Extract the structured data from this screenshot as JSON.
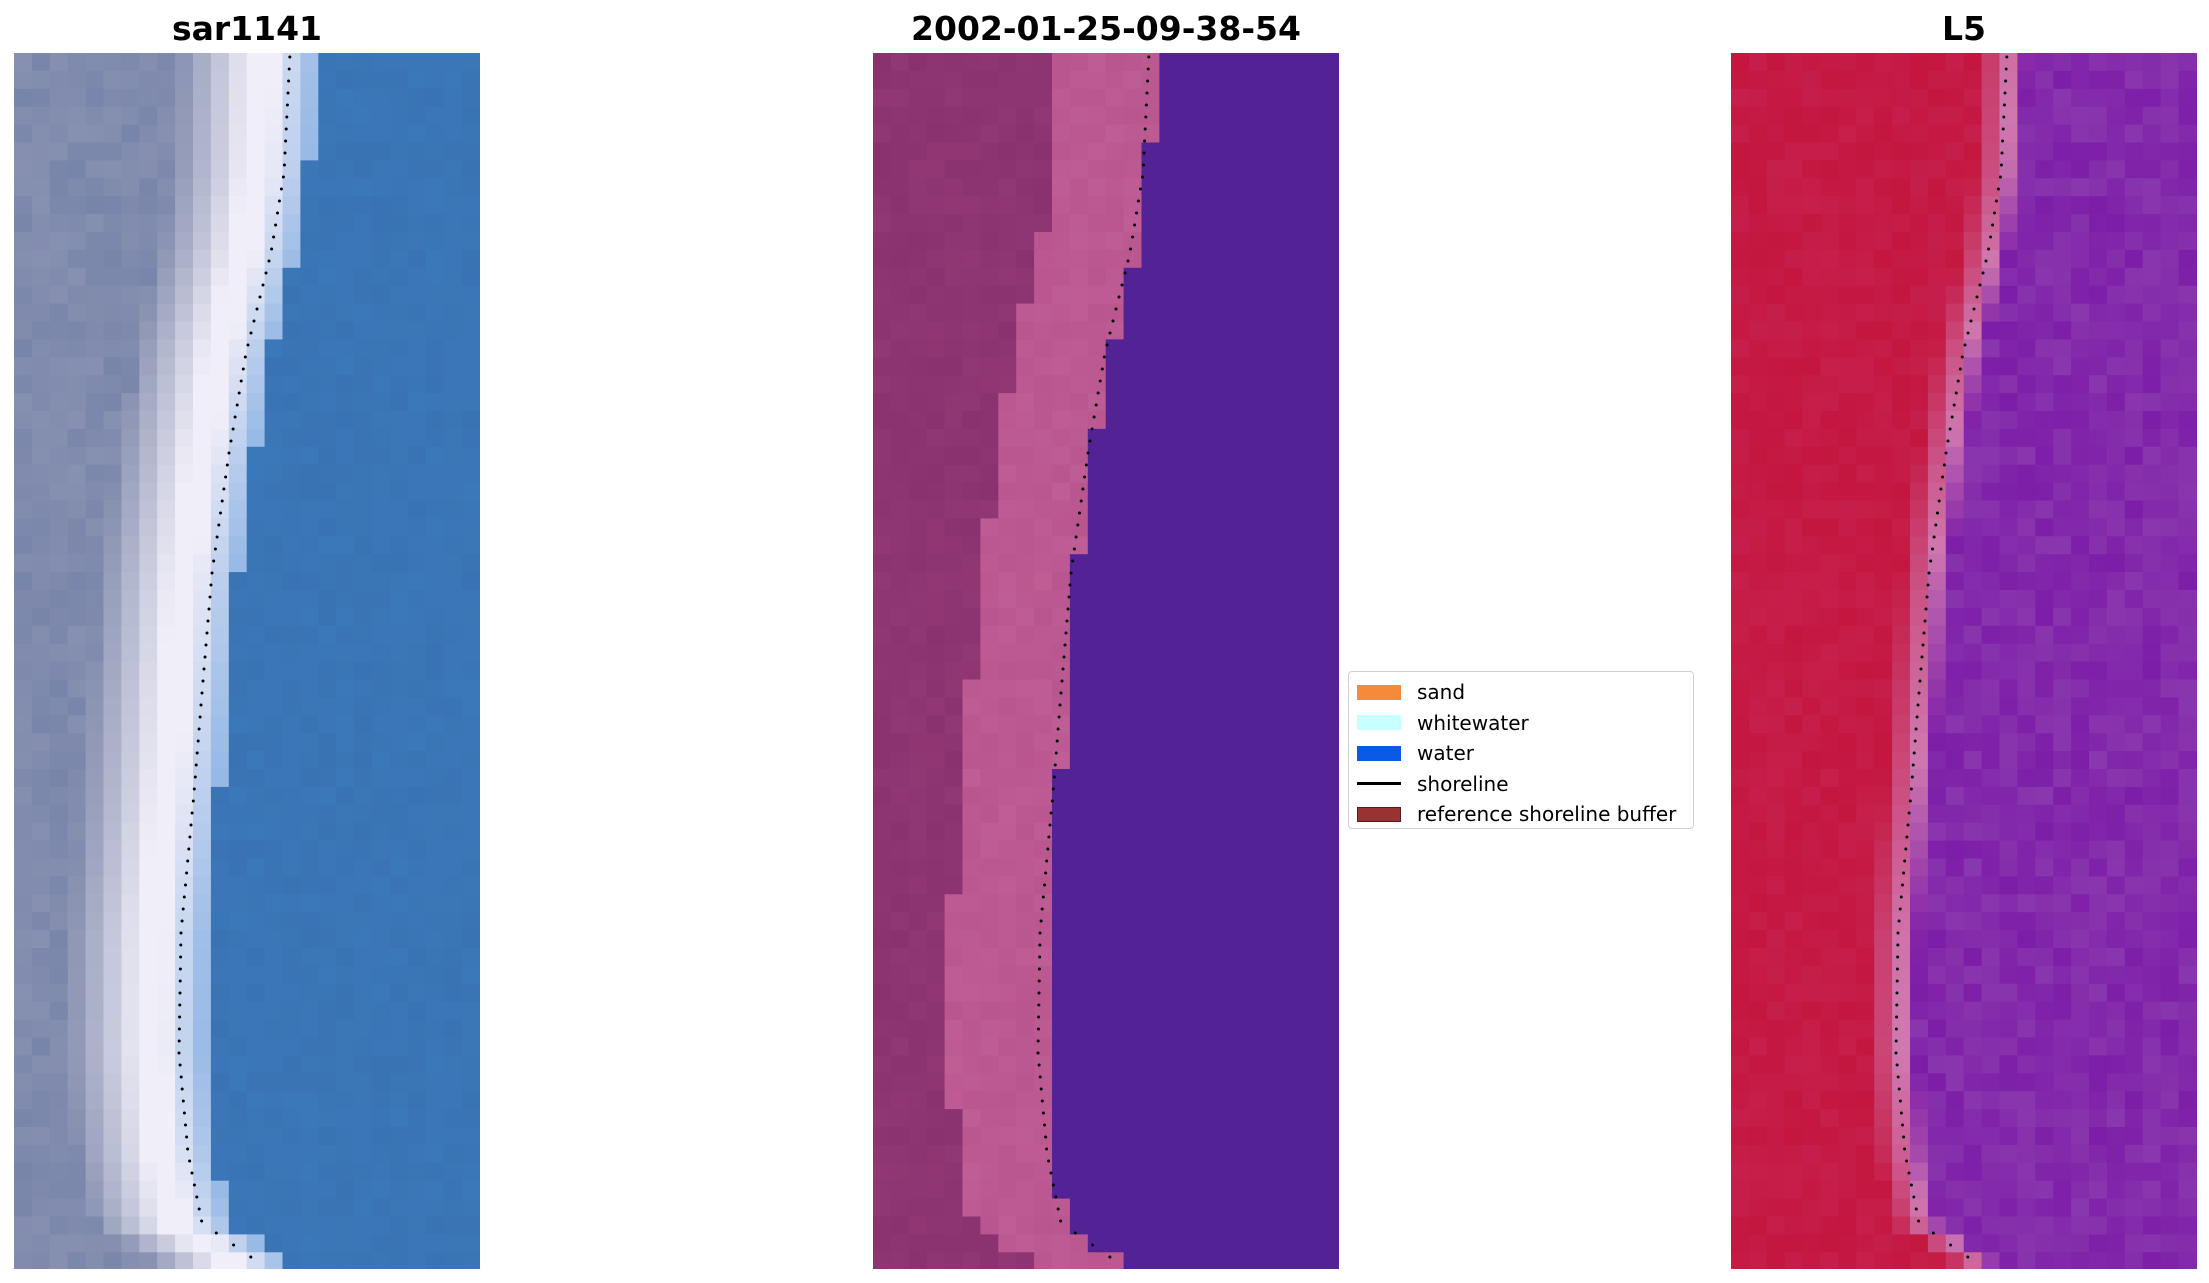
{
  "panels": [
    {
      "id": "rgb",
      "title": "sar1141"
    },
    {
      "id": "classified",
      "title": "2002-01-25-09-38-54"
    },
    {
      "id": "mndwi",
      "title": "L5"
    }
  ],
  "legend": {
    "items": [
      {
        "label": "sand",
        "color": "#f58a3a",
        "kind": "patch"
      },
      {
        "label": "whitewater",
        "color": "#c8ffff",
        "kind": "patch"
      },
      {
        "label": "water",
        "color": "#0a5ae6",
        "kind": "patch"
      },
      {
        "label": "shoreline",
        "color": "#000000",
        "kind": "line"
      },
      {
        "label": "reference shoreline buffer",
        "color": "#993333",
        "kind": "patch"
      }
    ]
  },
  "colors": {
    "rgb_sand": "#8790b0",
    "rgb_surf": "#f0eef8",
    "rgb_water": "#3a73b4",
    "class_land": "#8a3270",
    "class_beach": "#b9558f",
    "class_water": "#532294",
    "ndwi_land": "#c4163f",
    "ndwi_edge": "#d078b0",
    "ndwi_water": "#7d1ea8",
    "shoreline": "#000000"
  }
}
